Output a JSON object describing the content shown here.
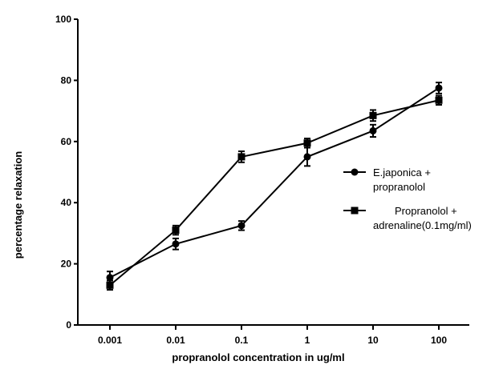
{
  "chart_data": {
    "type": "line",
    "title": "",
    "xlabel": "propranolol concentration in ug/ml",
    "ylabel": "percentage relaxation",
    "x": [
      "0.001",
      "0.01",
      "0.1",
      "1",
      "10",
      "100"
    ],
    "x_scale": "log",
    "ylim": [
      0,
      100
    ],
    "yticks": [
      0,
      20,
      40,
      60,
      80,
      100
    ],
    "grid": false,
    "legend_position": "right",
    "series": [
      {
        "name": "E.japonica + propranolol",
        "legend_lines": [
          "E.japonica +",
          "propranolol"
        ],
        "marker": "circle",
        "values": [
          15.5,
          26.5,
          32.5,
          55,
          63.5,
          77.5
        ],
        "errors": [
          2,
          1.8,
          1.5,
          3,
          2,
          1.8
        ]
      },
      {
        "name": "Propranolol + adrenaline(0.1mg/ml)",
        "legend_lines": [
          "Propranolol +",
          "adrenaline(0.1mg/ml)"
        ],
        "marker": "square",
        "values": [
          13,
          31,
          55,
          59.5,
          68.5,
          73.5
        ],
        "errors": [
          1.5,
          1.5,
          1.8,
          1.5,
          1.8,
          1.5
        ]
      }
    ]
  }
}
